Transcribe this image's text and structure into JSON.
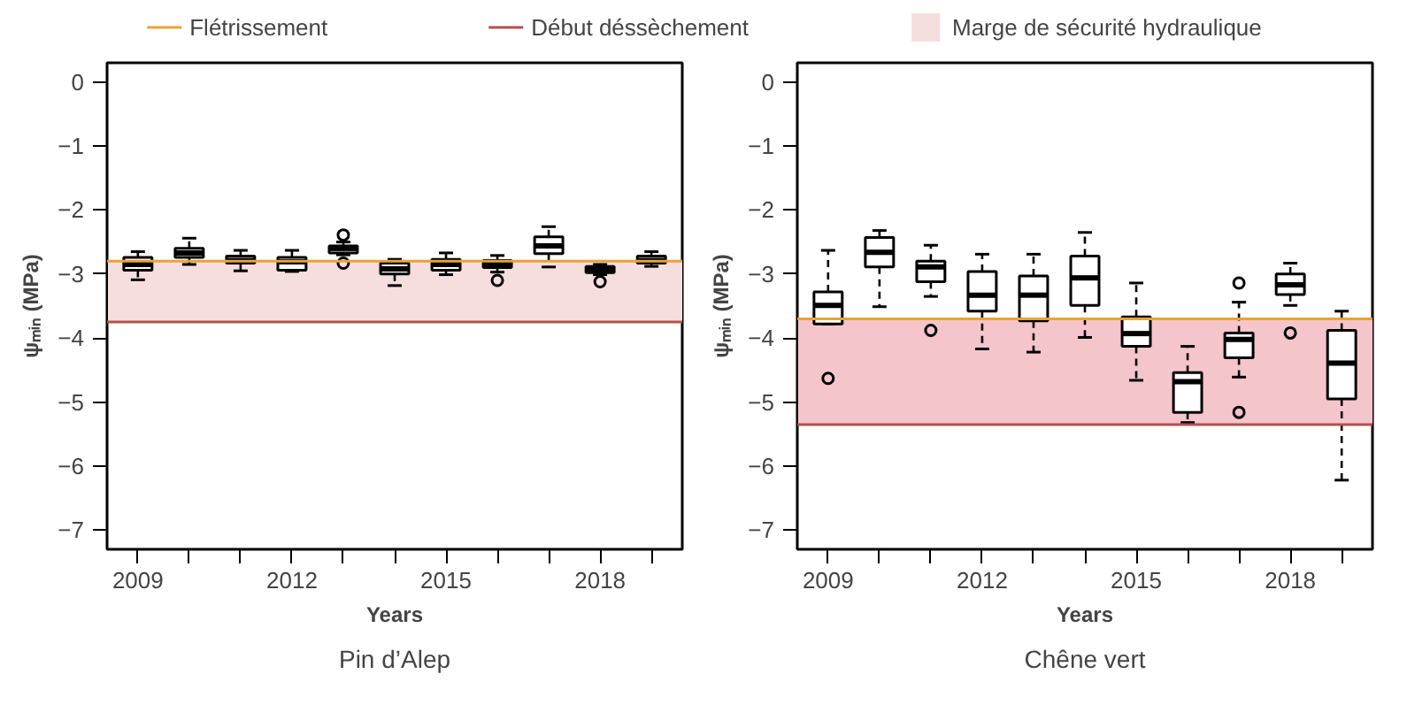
{
  "chart_data": [
    {
      "type": "box",
      "title": "Pin d’Alep",
      "xlabel": "Years",
      "ylabel": "ψₘᵢₙ (MPa)",
      "categories": [
        "2009",
        null,
        null,
        "2012",
        null,
        null,
        "2015",
        null,
        null,
        "2018",
        null
      ],
      "boxes": [
        {
          "low": -3.09,
          "q1": -2.94,
          "median": -2.85,
          "q3": -2.74,
          "high": -2.65
        },
        {
          "low": -2.85,
          "q1": -2.74,
          "median": -2.67,
          "q3": -2.6,
          "high": -2.44
        },
        {
          "low": -2.95,
          "q1": -2.83,
          "median": -2.79,
          "q3": -2.72,
          "high": -2.63
        },
        {
          "low": -2.96,
          "q1": -2.94,
          "median": -2.81,
          "q3": -2.74,
          "high": -2.63
        },
        {
          "low": -2.7,
          "q1": -2.67,
          "median": -2.6,
          "q3": -2.56,
          "high": -2.5,
          "outliers": [
            -2.39,
            -2.83
          ]
        },
        {
          "low": -3.18,
          "q1": -3.0,
          "median": -2.92,
          "q3": -2.83,
          "high": -2.77
        },
        {
          "low": -3.01,
          "q1": -2.94,
          "median": -2.85,
          "q3": -2.77,
          "high": -2.67
        },
        {
          "low": -2.97,
          "q1": -2.9,
          "median": -2.85,
          "q3": -2.79,
          "high": -2.71,
          "outliers": [
            -3.1
          ]
        },
        {
          "low": -2.89,
          "q1": -2.68,
          "median": -2.56,
          "q3": -2.42,
          "high": -2.26
        },
        {
          "low": -3.01,
          "q1": -2.98,
          "median": -2.92,
          "q3": -2.88,
          "high": -2.85,
          "outliers": [
            -3.12
          ]
        },
        {
          "low": -2.88,
          "q1": -2.83,
          "median": -2.79,
          "q3": -2.72,
          "high": -2.65
        }
      ],
      "ylim": [
        -7.3,
        0.3
      ],
      "yticks": [
        0,
        -1,
        -2,
        -3,
        -4,
        -5,
        -6,
        -7
      ],
      "grid": false,
      "legend": "top",
      "ref_lines": [
        {
          "axis": "y",
          "value": -2.8,
          "label": "Flétrissement",
          "color": "#e8a33a"
        },
        {
          "axis": "y",
          "value": -3.75,
          "label": "Début déssèchement",
          "color": "#b5504a"
        }
      ],
      "bands": [
        {
          "axis": "y",
          "from": -3.75,
          "to": -2.8,
          "label": "Marge de sécurité hydraulique",
          "color": "#f7dede"
        }
      ]
    },
    {
      "type": "box",
      "title": "Chêne vert",
      "xlabel": "Years",
      "ylabel": "ψₘᵢₙ (MPa)",
      "categories": [
        "2009",
        null,
        null,
        "2012",
        null,
        null,
        "2015",
        null,
        null,
        "2018",
        null
      ],
      "boxes": [
        {
          "low": -3.78,
          "q1": -3.78,
          "median": -3.49,
          "q3": -3.28,
          "high": -2.63,
          "outliers": [
            -4.63
          ]
        },
        {
          "low": -3.51,
          "q1": -2.89,
          "median": -2.66,
          "q3": -2.43,
          "high": -2.32
        },
        {
          "low": -3.35,
          "q1": -3.12,
          "median": -2.89,
          "q3": -2.8,
          "high": -2.55,
          "outliers": [
            -3.88
          ]
        },
        {
          "low": -4.17,
          "q1": -3.58,
          "median": -3.33,
          "q3": -2.96,
          "high": -2.69
        },
        {
          "low": -4.22,
          "q1": -3.73,
          "median": -3.33,
          "q3": -3.03,
          "high": -2.69
        },
        {
          "low": -3.99,
          "q1": -3.49,
          "median": -3.06,
          "q3": -2.72,
          "high": -2.35
        },
        {
          "low": -4.66,
          "q1": -4.13,
          "median": -3.93,
          "q3": -3.67,
          "high": -3.14
        },
        {
          "low": -5.32,
          "q1": -5.16,
          "median": -4.68,
          "q3": -4.54,
          "high": -4.13
        },
        {
          "low": -4.61,
          "q1": -4.31,
          "median": -4.02,
          "q3": -3.92,
          "high": -3.44,
          "outliers": [
            -3.14,
            -5.16
          ]
        },
        {
          "low": -3.49,
          "q1": -3.32,
          "median": -3.17,
          "q3": -3.0,
          "high": -2.83,
          "outliers": [
            -3.92
          ]
        },
        {
          "low": -6.22,
          "q1": -4.95,
          "median": -4.39,
          "q3": -3.88,
          "high": -3.58
        }
      ],
      "ylim": [
        -7.3,
        0.3
      ],
      "yticks": [
        0,
        -1,
        -2,
        -3,
        -4,
        -5,
        -6,
        -7
      ],
      "grid": false,
      "ref_lines": [
        {
          "axis": "y",
          "value": -3.7,
          "color": "#e8a33a"
        },
        {
          "axis": "y",
          "value": -5.35,
          "color": "#b5504a"
        }
      ],
      "bands": [
        {
          "axis": "y",
          "from": -5.35,
          "to": -3.7,
          "color": "#f5c5cc"
        }
      ]
    }
  ]
}
